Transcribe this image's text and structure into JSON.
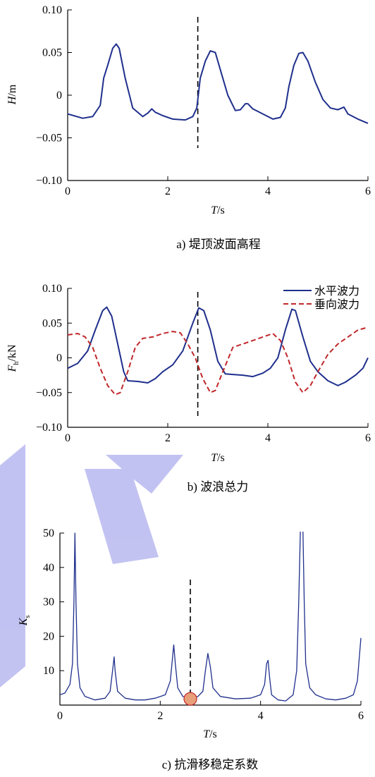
{
  "colors": {
    "blue": "#1f2f8c",
    "red": "#c0282a",
    "marker": "#e8a07a",
    "watermark": "#b8b8f0"
  },
  "chart_data": [
    {
      "type": "line",
      "caption": "a) 堤顶波面高程",
      "ylabel": {
        "main": "H",
        "unit": "/m"
      },
      "xlabel": {
        "main": "T",
        "unit": "/s"
      },
      "xlim": [
        0,
        6
      ],
      "ylim": [
        -0.1,
        0.1
      ],
      "xticks": [
        "0",
        "2",
        "4",
        "6"
      ],
      "yticks": [
        "−0.10",
        "−0.05",
        "0",
        "0.05",
        "0.10"
      ],
      "vline_x": 2.6,
      "series": [
        {
          "color": "blue",
          "dash": "",
          "points": [
            [
              0,
              -0.022
            ],
            [
              0.3,
              -0.027
            ],
            [
              0.5,
              -0.025
            ],
            [
              0.65,
              -0.012
            ],
            [
              0.72,
              0.02
            ],
            [
              0.8,
              0.035
            ],
            [
              0.9,
              0.055
            ],
            [
              0.97,
              0.06
            ],
            [
              1.03,
              0.055
            ],
            [
              1.15,
              0.02
            ],
            [
              1.3,
              -0.015
            ],
            [
              1.5,
              -0.025
            ],
            [
              1.6,
              -0.021
            ],
            [
              1.68,
              -0.016
            ],
            [
              1.75,
              -0.02
            ],
            [
              1.9,
              -0.024
            ],
            [
              2.1,
              -0.028
            ],
            [
              2.35,
              -0.029
            ],
            [
              2.5,
              -0.025
            ],
            [
              2.58,
              -0.015
            ],
            [
              2.65,
              0.02
            ],
            [
              2.75,
              0.04
            ],
            [
              2.85,
              0.052
            ],
            [
              2.95,
              0.05
            ],
            [
              3.05,
              0.03
            ],
            [
              3.2,
              0.0
            ],
            [
              3.35,
              -0.018
            ],
            [
              3.45,
              -0.017
            ],
            [
              3.55,
              -0.01
            ],
            [
              3.6,
              -0.01
            ],
            [
              3.7,
              -0.016
            ],
            [
              3.9,
              -0.022
            ],
            [
              4.1,
              -0.028
            ],
            [
              4.25,
              -0.026
            ],
            [
              4.35,
              -0.015
            ],
            [
              4.42,
              0.01
            ],
            [
              4.52,
              0.035
            ],
            [
              4.62,
              0.049
            ],
            [
              4.7,
              0.05
            ],
            [
              4.8,
              0.04
            ],
            [
              4.95,
              0.015
            ],
            [
              5.1,
              -0.005
            ],
            [
              5.25,
              -0.015
            ],
            [
              5.4,
              -0.017
            ],
            [
              5.52,
              -0.014
            ],
            [
              5.6,
              -0.022
            ],
            [
              5.8,
              -0.028
            ],
            [
              6.0,
              -0.033
            ]
          ]
        }
      ]
    },
    {
      "type": "line",
      "caption": "b) 波浪总力",
      "ylabel": {
        "main": "F",
        "sub": "h",
        "unit": "/kN"
      },
      "xlabel": {
        "main": "T",
        "unit": "/s"
      },
      "xlim": [
        0,
        6
      ],
      "ylim": [
        -0.1,
        0.1
      ],
      "xticks": [
        "0",
        "2",
        "4",
        "6"
      ],
      "yticks": [
        "−0.10",
        "−0.05",
        "0",
        "0.05",
        "0.10"
      ],
      "vline_x": 2.6,
      "legend": [
        "水平波力",
        "垂向波力"
      ],
      "series": [
        {
          "name": "水平波力",
          "color": "blue",
          "dash": "",
          "points": [
            [
              0,
              -0.015
            ],
            [
              0.2,
              -0.008
            ],
            [
              0.4,
              0.01
            ],
            [
              0.55,
              0.04
            ],
            [
              0.7,
              0.068
            ],
            [
              0.78,
              0.073
            ],
            [
              0.88,
              0.06
            ],
            [
              1.0,
              0.02
            ],
            [
              1.12,
              -0.02
            ],
            [
              1.2,
              -0.033
            ],
            [
              1.4,
              -0.034
            ],
            [
              1.6,
              -0.036
            ],
            [
              1.75,
              -0.03
            ],
            [
              1.9,
              -0.02
            ],
            [
              2.1,
              -0.01
            ],
            [
              2.3,
              0.01
            ],
            [
              2.5,
              0.05
            ],
            [
              2.62,
              0.072
            ],
            [
              2.72,
              0.068
            ],
            [
              2.85,
              0.04
            ],
            [
              3.0,
              -0.005
            ],
            [
              3.15,
              -0.023
            ],
            [
              3.3,
              -0.024
            ],
            [
              3.5,
              -0.025
            ],
            [
              3.7,
              -0.027
            ],
            [
              3.9,
              -0.022
            ],
            [
              4.05,
              -0.015
            ],
            [
              4.2,
              0.0
            ],
            [
              4.35,
              0.04
            ],
            [
              4.48,
              0.07
            ],
            [
              4.55,
              0.068
            ],
            [
              4.7,
              0.03
            ],
            [
              4.85,
              -0.005
            ],
            [
              5.0,
              -0.02
            ],
            [
              5.2,
              -0.033
            ],
            [
              5.4,
              -0.04
            ],
            [
              5.55,
              -0.035
            ],
            [
              5.75,
              -0.025
            ],
            [
              5.9,
              -0.015
            ],
            [
              6.0,
              0.0
            ]
          ]
        },
        {
          "name": "垂向波力",
          "color": "red",
          "dash": "7,4",
          "points": [
            [
              0,
              0.033
            ],
            [
              0.2,
              0.035
            ],
            [
              0.35,
              0.03
            ],
            [
              0.5,
              0.015
            ],
            [
              0.65,
              -0.015
            ],
            [
              0.8,
              -0.04
            ],
            [
              0.95,
              -0.053
            ],
            [
              1.05,
              -0.05
            ],
            [
              1.2,
              -0.02
            ],
            [
              1.35,
              0.015
            ],
            [
              1.5,
              0.028
            ],
            [
              1.7,
              0.03
            ],
            [
              1.9,
              0.035
            ],
            [
              2.1,
              0.038
            ],
            [
              2.25,
              0.036
            ],
            [
              2.4,
              0.02
            ],
            [
              2.55,
              0.0
            ],
            [
              2.7,
              -0.03
            ],
            [
              2.85,
              -0.05
            ],
            [
              2.95,
              -0.047
            ],
            [
              3.1,
              -0.02
            ],
            [
              3.3,
              0.015
            ],
            [
              3.5,
              0.02
            ],
            [
              3.7,
              0.025
            ],
            [
              3.9,
              0.03
            ],
            [
              4.1,
              0.035
            ],
            [
              4.25,
              0.025
            ],
            [
              4.4,
              0.0
            ],
            [
              4.55,
              -0.035
            ],
            [
              4.7,
              -0.05
            ],
            [
              4.85,
              -0.04
            ],
            [
              5.0,
              -0.02
            ],
            [
              5.2,
              0.005
            ],
            [
              5.4,
              0.02
            ],
            [
              5.6,
              0.03
            ],
            [
              5.8,
              0.04
            ],
            [
              5.95,
              0.043
            ],
            [
              6.0,
              0.043
            ]
          ]
        }
      ]
    },
    {
      "type": "line",
      "caption": "c) 抗滑移稳定系数",
      "ylabel": {
        "main": "K",
        "sub": "s",
        "unit": ""
      },
      "xlabel": {
        "main": "T",
        "unit": "/s"
      },
      "xlim": [
        0,
        6
      ],
      "ylim": [
        0,
        50
      ],
      "xticks": [
        "0",
        "2",
        "4",
        "6"
      ],
      "yticks": [
        "10",
        "20",
        "30",
        "40",
        "50"
      ],
      "vline_x": 2.6,
      "marker": [
        2.6,
        1.8
      ],
      "series": [
        {
          "color": "blue",
          "dash": "",
          "points": [
            [
              0,
              3
            ],
            [
              0.1,
              3.5
            ],
            [
              0.2,
              6
            ],
            [
              0.25,
              12
            ],
            [
              0.28,
              30
            ],
            [
              0.3,
              50
            ],
            [
              0.32,
              30
            ],
            [
              0.35,
              12
            ],
            [
              0.4,
              5
            ],
            [
              0.5,
              2.5
            ],
            [
              0.7,
              1.5
            ],
            [
              0.9,
              2
            ],
            [
              1.0,
              4
            ],
            [
              1.05,
              10
            ],
            [
              1.08,
              14
            ],
            [
              1.1,
              10
            ],
            [
              1.15,
              4
            ],
            [
              1.3,
              2
            ],
            [
              1.5,
              1.5
            ],
            [
              1.7,
              1.5
            ],
            [
              1.9,
              2
            ],
            [
              2.1,
              3
            ],
            [
              2.2,
              7
            ],
            [
              2.27,
              17.5
            ],
            [
              2.3,
              12
            ],
            [
              2.35,
              5
            ],
            [
              2.45,
              2.5
            ],
            [
              2.6,
              1.8
            ],
            [
              2.75,
              2.5
            ],
            [
              2.85,
              4
            ],
            [
              2.9,
              10
            ],
            [
              2.95,
              15
            ],
            [
              3.0,
              11
            ],
            [
              3.05,
              5
            ],
            [
              3.2,
              2.5
            ],
            [
              3.5,
              1.8
            ],
            [
              3.8,
              2
            ],
            [
              4.0,
              3
            ],
            [
              4.08,
              6
            ],
            [
              4.12,
              12
            ],
            [
              4.15,
              13
            ],
            [
              4.18,
              8
            ],
            [
              4.22,
              3
            ],
            [
              4.35,
              1.5
            ],
            [
              4.5,
              1.2
            ],
            [
              4.65,
              3
            ],
            [
              4.72,
              10
            ],
            [
              4.76,
              30
            ],
            [
              4.8,
              55
            ],
            [
              4.84,
              55
            ],
            [
              4.87,
              30
            ],
            [
              4.9,
              12
            ],
            [
              4.98,
              5
            ],
            [
              5.1,
              3
            ],
            [
              5.3,
              1.8
            ],
            [
              5.5,
              1.5
            ],
            [
              5.7,
              2
            ],
            [
              5.85,
              3
            ],
            [
              5.93,
              7
            ],
            [
              6.0,
              19.5
            ]
          ]
        }
      ]
    }
  ]
}
